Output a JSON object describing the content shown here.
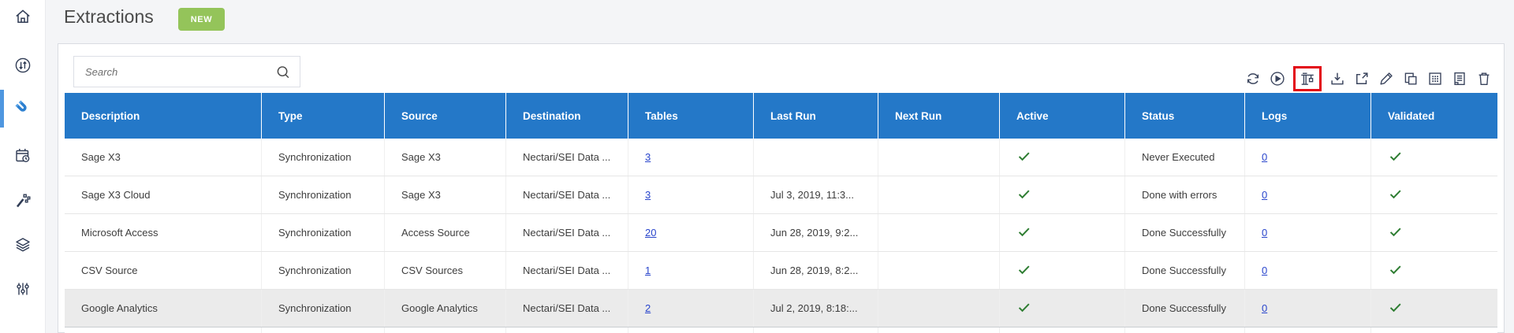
{
  "page": {
    "title": "Extractions",
    "new_button": "NEW"
  },
  "sidebar": {
    "items": [
      {
        "name": "home",
        "icon": "home-icon",
        "active": false
      },
      {
        "name": "transfers",
        "icon": "transfer-circle-icon",
        "active": false
      },
      {
        "name": "extractions",
        "icon": "magnet-icon",
        "active": true
      },
      {
        "name": "schedule",
        "icon": "calendar-clock-icon",
        "active": false
      },
      {
        "name": "wizard",
        "icon": "magic-wand-icon",
        "active": false
      },
      {
        "name": "layers",
        "icon": "layers-icon",
        "active": false
      },
      {
        "name": "settings",
        "icon": "sliders-icon",
        "active": false
      }
    ]
  },
  "search": {
    "placeholder": "Search",
    "value": ""
  },
  "toolbar": {
    "icons": [
      "refresh-icon",
      "run-icon",
      "crane-icon",
      "download-icon",
      "open-external-icon",
      "edit-icon",
      "copy-icon",
      "grid-icon",
      "report-icon",
      "delete-icon"
    ],
    "highlighted_icon": "crane-icon"
  },
  "table": {
    "columns": [
      "Description",
      "Type",
      "Source",
      "Destination",
      "Tables",
      "Last Run",
      "Next Run",
      "Active",
      "Status",
      "Logs",
      "Validated"
    ],
    "rows": [
      {
        "description": "Sage X3",
        "type": "Synchronization",
        "source": "Sage X3",
        "destination": "Nectari/SEI Data ...",
        "tables": "3",
        "last_run": "",
        "next_run": "",
        "active": true,
        "status": "Never Executed",
        "logs": "0",
        "validated": true,
        "highlighted": false
      },
      {
        "description": "Sage X3 Cloud",
        "type": "Synchronization",
        "source": "Sage X3",
        "destination": "Nectari/SEI Data ...",
        "tables": "3",
        "last_run": "Jul 3, 2019, 11:3...",
        "next_run": "",
        "active": true,
        "status": "Done with errors",
        "logs": "0",
        "validated": true,
        "highlighted": false
      },
      {
        "description": "Microsoft Access",
        "type": "Synchronization",
        "source": "Access Source",
        "destination": "Nectari/SEI Data ...",
        "tables": "20",
        "last_run": "Jun 28, 2019, 9:2...",
        "next_run": "",
        "active": true,
        "status": "Done Successfully",
        "logs": "0",
        "validated": true,
        "highlighted": false
      },
      {
        "description": "CSV Source",
        "type": "Synchronization",
        "source": "CSV Sources",
        "destination": "Nectari/SEI Data ...",
        "tables": "1",
        "last_run": "Jun 28, 2019, 8:2...",
        "next_run": "",
        "active": true,
        "status": "Done Successfully",
        "logs": "0",
        "validated": true,
        "highlighted": false
      },
      {
        "description": "Google Analytics",
        "type": "Synchronization",
        "source": "Google Analytics",
        "destination": "Nectari/SEI Data ...",
        "tables": "2",
        "last_run": "Jul 2, 2019, 8:18:...",
        "next_run": "",
        "active": true,
        "status": "Done Successfully",
        "logs": "0",
        "validated": true,
        "highlighted": true
      }
    ]
  },
  "colors": {
    "header_blue": "#2478c8",
    "new_button_green": "#94c45a",
    "active_item_blue": "#4f97e0",
    "link_blue": "#2945cc",
    "check_green": "#2e7d32",
    "highlight_red": "#e30613",
    "row_highlight_gray": "#ebebeb"
  }
}
